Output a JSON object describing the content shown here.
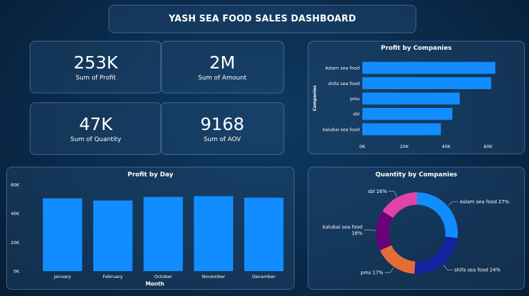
{
  "header": {
    "title": "YASH SEA FOOD SALES DASHBOARD"
  },
  "kpis": [
    {
      "value": "253K",
      "label": "Sum of Profit"
    },
    {
      "value": "2M",
      "label": "Sum of Amount"
    },
    {
      "value": "47K",
      "label": "Sum of Quantity"
    },
    {
      "value": "9168",
      "label": "Sum of AOV"
    }
  ],
  "colors": {
    "bar": "#118dff",
    "navy": "#12239e",
    "orange": "#e66c37",
    "purple": "#6b007b",
    "pink": "#e044a7"
  },
  "chart_data": [
    {
      "type": "bar",
      "orientation": "horizontal",
      "title": "Profit by Companies",
      "ylabel": "Companies",
      "xlabel": "",
      "categories": [
        "Aslam sea food",
        "shifa sea food",
        "pms",
        "sbl",
        "kalubai sea food"
      ],
      "values": [
        63500,
        61500,
        46500,
        43000,
        37500
      ],
      "xlim": [
        0,
        70000
      ],
      "ticks": [
        0,
        20000,
        40000,
        60000
      ],
      "tick_labels": [
        "0K",
        "20K",
        "40K",
        "60K"
      ]
    },
    {
      "type": "bar",
      "title": "Profit by Day",
      "xlabel": "Month",
      "ylabel": "",
      "categories": [
        "January",
        "February",
        "October",
        "November",
        "December"
      ],
      "values": [
        50500,
        49000,
        51500,
        52000,
        51000
      ],
      "ylim": [
        0,
        60000
      ],
      "ticks": [
        0,
        20000,
        40000,
        60000
      ],
      "tick_labels": [
        "0K",
        "20K",
        "40K",
        "60K"
      ]
    },
    {
      "type": "pie",
      "donut": true,
      "title": "Quantity by Companies",
      "slices": [
        {
          "label": "Aslam sea food",
          "pct": 27,
          "color": "#118dff",
          "text": "Aslam sea food 27%"
        },
        {
          "label": "shifa sea food",
          "pct": 24,
          "color": "#12239e",
          "text": "shifa sea food 24%"
        },
        {
          "label": "pms",
          "pct": 17,
          "color": "#e66c37",
          "text": "pms 17%"
        },
        {
          "label": "kalubai sea food",
          "pct": 16,
          "color": "#6b007b",
          "text": "kalubai sea food",
          "text2": "16%"
        },
        {
          "label": "sbl",
          "pct": 16,
          "color": "#e044a7",
          "text": "sbl 16%"
        }
      ]
    }
  ]
}
